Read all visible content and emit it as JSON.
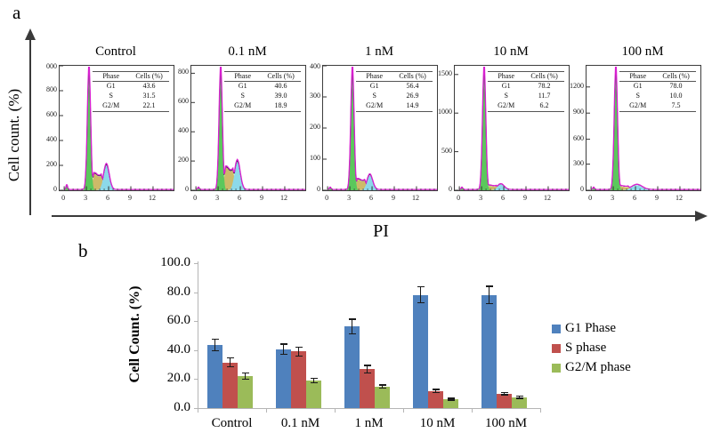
{
  "labels": {
    "panel_a": "a",
    "panel_b": "b"
  },
  "chart_data": [
    {
      "type": "area",
      "panel": "a",
      "description": "Flow cytometry cell-cycle histograms (PI staining) at five treatment doses",
      "ylabel": "Cell count. (%)",
      "xlabel": "PI",
      "x_ticks": [
        [
          "0",
          0
        ],
        [
          "3",
          3
        ],
        [
          "6",
          6
        ],
        [
          "9",
          9
        ],
        [
          "12",
          12
        ]
      ],
      "table_headers": [
        "Phase",
        "Cells (%)"
      ],
      "panels": [
        {
          "title": "Control",
          "rows": [
            [
              "G1",
              "43.6"
            ],
            [
              "S",
              "31.5"
            ],
            [
              "G2/M",
              "22.1"
            ]
          ],
          "y_ticks": [
            [
              "000",
              1.0
            ],
            [
              "800",
              0.8
            ],
            [
              "600",
              0.6
            ],
            [
              "400",
              0.4
            ],
            [
              "200",
              0.2
            ],
            [
              "0",
              0.0
            ]
          ],
          "curve": {
            "g1": 96,
            "s": 13,
            "g2m": 20,
            "g2m_center": 5.7,
            "g2m_sigma": 0.38,
            "debris": 4
          }
        },
        {
          "title": "0.1 nM",
          "rows": [
            [
              "G1",
              "40.6"
            ],
            [
              "S",
              "39.0"
            ],
            [
              "G2/M",
              "18.9"
            ]
          ],
          "y_ticks": [
            [
              "800",
              0.94
            ],
            [
              "600",
              0.705
            ],
            [
              "400",
              0.47
            ],
            [
              "200",
              0.235
            ],
            [
              "0",
              0.0
            ]
          ],
          "curve": {
            "g1": 96,
            "s": 18,
            "g2m": 23,
            "g2m_center": 5.6,
            "g2m_sigma": 0.38,
            "debris": 2
          }
        },
        {
          "title": "1 nM",
          "rows": [
            [
              "G1",
              "56.4"
            ],
            [
              "S",
              "26.9"
            ],
            [
              "G2/M",
              "14.9"
            ]
          ],
          "y_ticks": [
            [
              "400",
              1.0
            ],
            [
              "300",
              0.75
            ],
            [
              "200",
              0.5
            ],
            [
              "100",
              0.25
            ],
            [
              "0",
              0.0
            ]
          ],
          "curve": {
            "g1": 96,
            "s": 8.5,
            "g2m": 12,
            "g2m_center": 5.7,
            "g2m_sigma": 0.38,
            "debris": 2
          }
        },
        {
          "title": "10 nM",
          "rows": [
            [
              "G1",
              "78.2"
            ],
            [
              "S",
              "11.7"
            ],
            [
              "G2/M",
              "6.2"
            ]
          ],
          "y_ticks": [
            [
              "1500",
              0.93
            ],
            [
              "1000",
              0.62
            ],
            [
              "500",
              0.31
            ],
            [
              "0",
              0.0
            ]
          ],
          "curve": {
            "g1": 96,
            "s": 3.5,
            "g2m": 4.5,
            "g2m_center": 5.6,
            "g2m_sigma": 0.45,
            "debris": 2
          }
        },
        {
          "title": "100 nM",
          "rows": [
            [
              "G1",
              "78.0"
            ],
            [
              "S",
              "10.0"
            ],
            [
              "G2/M",
              "7.5"
            ]
          ],
          "y_ticks": [
            [
              "1200",
              0.83
            ],
            [
              "900",
              0.62
            ],
            [
              "600",
              0.41
            ],
            [
              "300",
              0.21
            ],
            [
              "0",
              0.0
            ]
          ],
          "curve": {
            "g1": 96,
            "s": 3,
            "g2m": 4,
            "g2m_center": 6.2,
            "g2m_sigma": 0.7,
            "debris": 2
          }
        }
      ],
      "fill_colors": {
        "g1_peak": "#5bc85c",
        "s_region": "#cdba69",
        "g2m_peak": "#8cd9e9",
        "fit_outline": "#d81fd0",
        "data_outline": "#1c1c2e"
      }
    },
    {
      "type": "bar",
      "panel": "b",
      "ylabel": "Cell Count. (%)",
      "ylim": [
        0,
        100
      ],
      "y_ticks": [
        "0.0",
        "20.0",
        "40.0",
        "60.0",
        "80.0",
        "100.0"
      ],
      "categories": [
        "Control",
        "0.1 nM",
        "1 nM",
        "10 nM",
        "100 nM"
      ],
      "series": [
        {
          "name": "G1 Phase",
          "color": "#4f81bd",
          "values": [
            43.6,
            40.6,
            56.4,
            78.2,
            78.0
          ],
          "errors": [
            4.5,
            4.0,
            5.5,
            6.0,
            6.5
          ]
        },
        {
          "name": "S phase",
          "color": "#c0504d",
          "values": [
            31.5,
            39.0,
            26.9,
            11.7,
            10.0
          ],
          "errors": [
            3.5,
            3.5,
            3.0,
            1.5,
            1.2
          ]
        },
        {
          "name": "G2/M phase",
          "color": "#9bbb59",
          "values": [
            22.1,
            18.9,
            14.9,
            6.2,
            7.5
          ],
          "errors": [
            2.5,
            2.0,
            1.5,
            1.0,
            1.2
          ]
        }
      ],
      "legend_position": "right",
      "grid": false
    }
  ]
}
